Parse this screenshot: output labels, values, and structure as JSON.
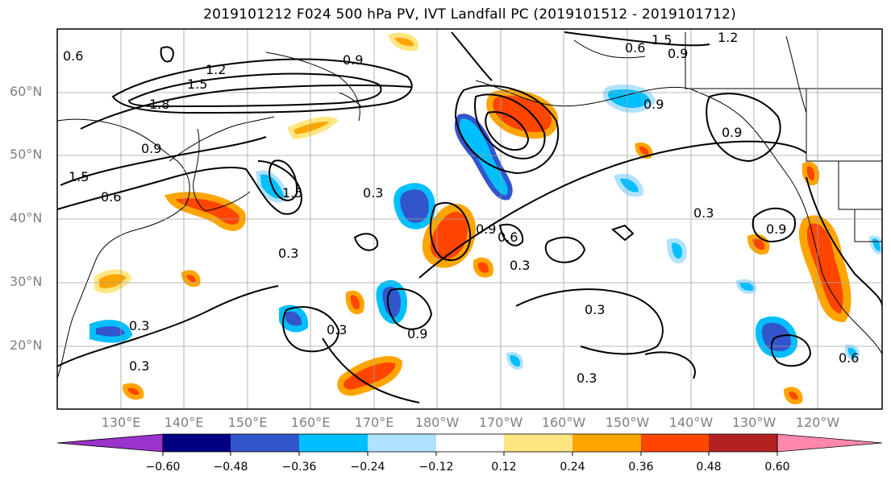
{
  "title": "2019101212 F024 500 hPa PV, IVT Landfall PC (2019101512 - 2019101712)",
  "map": {
    "lat_labels": [
      "60°N",
      "50°N",
      "40°N",
      "30°N",
      "20°N"
    ],
    "lon_labels": [
      "130°E",
      "140°E",
      "150°E",
      "160°E",
      "170°E",
      "180°W",
      "170°W",
      "160°W",
      "150°W",
      "140°W",
      "130°W",
      "120°W"
    ],
    "contour_labels": [
      "0.6",
      "0.9",
      "1.5",
      "1.2",
      "1.8",
      "0.9",
      "1.5",
      "0.6",
      "0.3",
      "1.5",
      "0.3",
      "0.6",
      "0.3",
      "0.9",
      "0.6",
      "0.3",
      "0.3",
      "0.9",
      "0.3",
      "0.3",
      "0.9",
      "0.9",
      "1.2",
      "1.5",
      "0.9",
      "0.3",
      "0.9",
      "0.3",
      "0.6"
    ]
  },
  "colorbar": {
    "colors": [
      "#9933cc",
      "#000080",
      "#3355cc",
      "#00bfff",
      "#b0e2ff",
      "#ffffff",
      "#ffe680",
      "#ffa500",
      "#ff4500",
      "#b22222",
      "#ff88aa"
    ],
    "tick_labels": [
      "−0.60",
      "−0.48",
      "−0.36",
      "−0.24",
      "−0.12",
      "0.12",
      "0.24",
      "0.36",
      "0.48",
      "0.60"
    ]
  }
}
